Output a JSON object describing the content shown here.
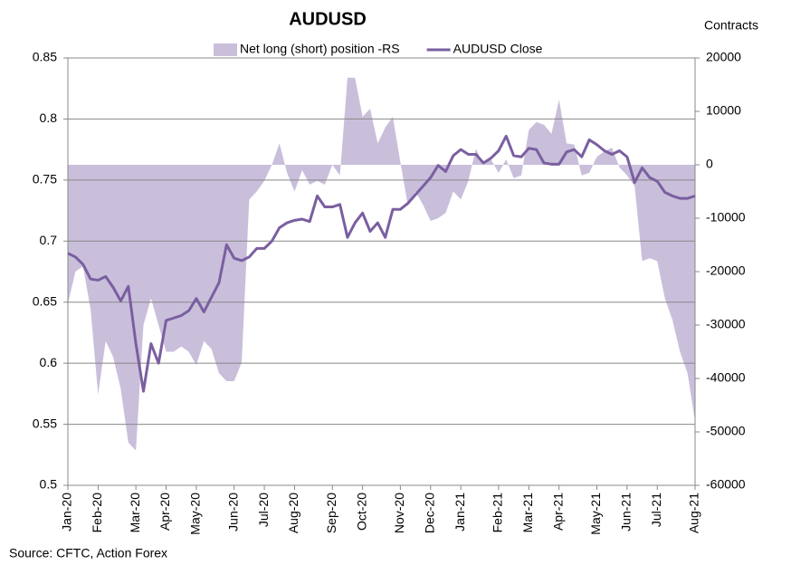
{
  "chart_data": {
    "type": "combo",
    "title": "AUDUSD",
    "y2_label": "Contracts",
    "source": "Source: CFTC, Action Forex",
    "categories": [
      "Jan-20",
      null,
      null,
      null,
      "Feb-20",
      null,
      null,
      null,
      null,
      "Mar-20",
      null,
      null,
      null,
      "Apr-20",
      null,
      null,
      null,
      "May-20",
      null,
      null,
      null,
      null,
      "Jun-20",
      null,
      null,
      null,
      "Jul-20",
      null,
      null,
      null,
      "Aug-20",
      null,
      null,
      null,
      null,
      "Sep-20",
      null,
      null,
      null,
      "Oct-20",
      null,
      null,
      null,
      null,
      "Nov-20",
      null,
      null,
      null,
      "Dec-20",
      null,
      null,
      null,
      "Jan-21",
      null,
      null,
      null,
      null,
      "Feb-21",
      null,
      null,
      null,
      "Mar-21",
      null,
      null,
      null,
      "Apr-21",
      null,
      null,
      null,
      null,
      "May-21",
      null,
      null,
      null,
      "Jun-21",
      null,
      null,
      null,
      "Jul-21",
      null,
      null,
      null,
      null,
      "Aug-21"
    ],
    "series": [
      {
        "name": "Net long (short) position -RS",
        "kind": "area",
        "axis": "y2",
        "color": "#c9bfdb",
        "values": [
          -26000,
          -20000,
          -19000,
          -27000,
          -43000,
          -33000,
          -36000,
          -42000,
          -52000,
          -53500,
          -30000,
          -25000,
          -30000,
          -35000,
          -35000,
          -34000,
          -35000,
          -37500,
          -33000,
          -34500,
          -39000,
          -40500,
          -40500,
          -37000,
          -6500,
          -5000,
          -3000,
          0,
          4000,
          -1500,
          -5000,
          -1000,
          -3700,
          -3000,
          -3700,
          0,
          -2000,
          16300,
          16300,
          9000,
          10500,
          4000,
          7000,
          9000,
          500,
          -7700,
          -5000,
          -7500,
          -10500,
          -10000,
          -9000,
          -5000,
          -6500,
          -3000,
          3000,
          0,
          1000,
          -1500,
          1000,
          -2500,
          -2000,
          6500,
          8000,
          7500,
          5800,
          12200,
          4000,
          3800,
          -2000,
          -1500,
          1500,
          2500,
          3200,
          -500,
          -2000,
          -4000,
          -18000,
          -17500,
          -18000,
          -25000,
          -29000,
          -35000,
          -39000,
          -48000
        ]
      },
      {
        "name": "AUDUSD Close",
        "kind": "line",
        "axis": "y",
        "color": "#7a5fa0",
        "values": [
          0.69,
          0.687,
          0.681,
          0.669,
          0.668,
          0.671,
          0.662,
          0.651,
          0.663,
          0.616,
          0.577,
          0.616,
          0.6,
          0.635,
          0.637,
          0.639,
          0.643,
          0.653,
          0.642,
          0.654,
          0.666,
          0.697,
          0.686,
          0.684,
          0.687,
          0.694,
          0.694,
          0.7,
          0.711,
          0.715,
          0.717,
          0.718,
          0.716,
          0.737,
          0.728,
          0.728,
          0.73,
          0.703,
          0.715,
          0.723,
          0.708,
          0.715,
          0.703,
          0.726,
          0.726,
          0.731,
          0.738,
          0.745,
          0.752,
          0.762,
          0.757,
          0.77,
          0.775,
          0.771,
          0.771,
          0.764,
          0.768,
          0.774,
          0.786,
          0.77,
          0.769,
          0.776,
          0.775,
          0.764,
          0.763,
          0.763,
          0.773,
          0.775,
          0.769,
          0.783,
          0.779,
          0.774,
          0.771,
          0.774,
          0.769,
          0.748,
          0.76,
          0.752,
          0.749,
          0.74,
          0.737,
          0.735,
          0.735,
          0.737
        ]
      }
    ],
    "ylim": [
      0.5,
      0.85
    ],
    "yticks": [
      0.85,
      0.8,
      0.75,
      0.7,
      0.65,
      0.6,
      0.55,
      0.5
    ],
    "y2lim": [
      -60000,
      20000
    ],
    "y2ticks": [
      20000,
      10000,
      0,
      -10000,
      -20000,
      -30000,
      -40000,
      -50000,
      -60000
    ],
    "grid": true,
    "legend": "top"
  }
}
